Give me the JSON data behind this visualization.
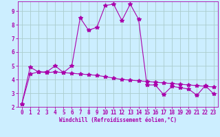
{
  "xlabel": "Windchill (Refroidissement éolien,°C)",
  "background_color": "#cceeff",
  "grid_color": "#aacccc",
  "line_color": "#aa00aa",
  "xlim": [
    -0.5,
    23.5
  ],
  "ylim": [
    2.0,
    9.7
  ],
  "yticks": [
    2,
    3,
    4,
    5,
    6,
    7,
    8,
    9
  ],
  "xticks": [
    0,
    1,
    2,
    3,
    4,
    5,
    6,
    7,
    8,
    9,
    10,
    11,
    12,
    13,
    14,
    15,
    16,
    17,
    18,
    19,
    20,
    21,
    22,
    23
  ],
  "series1_x": [
    0,
    1,
    2,
    3,
    4,
    5,
    6,
    7,
    8,
    9,
    10,
    11,
    12,
    13,
    14,
    15,
    16,
    17,
    18,
    19,
    20,
    21,
    22,
    23
  ],
  "series1_y": [
    2.2,
    4.9,
    4.55,
    4.55,
    5.0,
    4.5,
    5.0,
    8.5,
    7.6,
    7.8,
    9.4,
    9.5,
    8.3,
    9.5,
    8.4,
    3.6,
    3.6,
    2.9,
    3.5,
    3.4,
    3.3,
    2.85,
    3.55,
    2.95
  ],
  "series2_x": [
    0,
    1,
    2,
    3,
    4,
    5,
    6,
    7,
    8,
    9,
    10,
    11,
    12,
    13,
    14,
    15,
    16,
    17,
    18,
    19,
    20,
    21,
    22,
    23
  ],
  "series2_y": [
    2.2,
    4.4,
    4.55,
    4.5,
    4.55,
    4.5,
    4.45,
    4.4,
    4.35,
    4.3,
    4.2,
    4.1,
    4.0,
    3.95,
    3.9,
    3.85,
    3.8,
    3.75,
    3.7,
    3.65,
    3.6,
    3.55,
    3.5,
    3.45
  ]
}
